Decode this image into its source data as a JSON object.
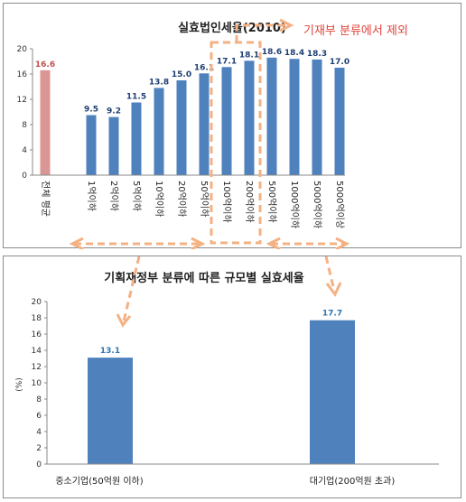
{
  "chart_data": [
    {
      "type": "bar",
      "title": "실효법인세율(2010)",
      "categories": [
        "전체 평균",
        "1억이하",
        "2억이하",
        "5억이하",
        "10억이하",
        "20억이하",
        "50억이하",
        "100억이하",
        "200억이하",
        "500억이하",
        "1000억이하",
        "5000억이하",
        "5000억이상"
      ],
      "values": [
        16.6,
        9.5,
        9.2,
        11.5,
        13.8,
        15.0,
        16.1,
        17.1,
        18.1,
        18.6,
        18.4,
        18.3,
        17.0
      ],
      "value_labels": [
        "16.6",
        "9.5",
        "9.2",
        "11.5",
        "13.8",
        "15.0",
        "16.1",
        "17.1",
        "18.1",
        "18.6",
        "18.4",
        "18.3",
        "17.0"
      ],
      "ylim": [
        0,
        20
      ],
      "yticks": [
        "0",
        "4",
        "8",
        "12",
        "16",
        "20"
      ],
      "grid": false,
      "colors": {
        "average_bar": "#d99694",
        "bar": "#4f81bd",
        "average_label": "#c0504d",
        "label": "#1f3f73"
      },
      "annotation": "기재부 분류에서 제외"
    },
    {
      "type": "bar",
      "title": "기획재정부 분류에 따른 규모별 실효세율",
      "categories": [
        "중소기업(50억원 이하)",
        "대기업(200억원 초과)"
      ],
      "values": [
        13.1,
        17.7
      ],
      "value_labels": [
        "13.1",
        "17.7"
      ],
      "ylabel": "(%)",
      "ylim": [
        0,
        20
      ],
      "yticks": [
        "0",
        "2",
        "4",
        "6",
        "8",
        "10",
        "12",
        "14",
        "16",
        "18",
        "20"
      ],
      "grid": false,
      "colors": {
        "bar": "#4f81bd",
        "label": "#2e75b6"
      }
    }
  ],
  "colors": {
    "dashed_arrow": "#f4b183"
  }
}
